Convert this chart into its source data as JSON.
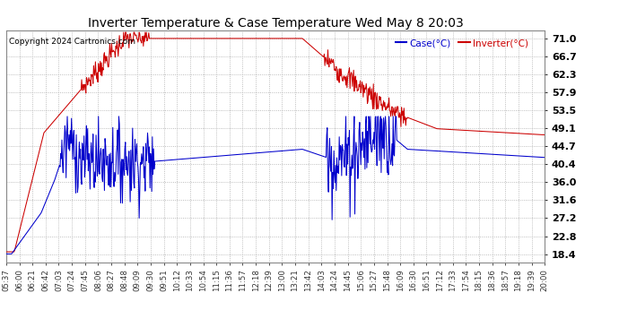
{
  "title": "Inverter Temperature & Case Temperature Wed May 8 20:03",
  "copyright": "Copyright 2024 Cartronics.com",
  "legend_case": "Case(°C)",
  "legend_inverter": "Inverter(°C)",
  "yticks": [
    18.4,
    22.8,
    27.2,
    31.6,
    36.0,
    40.4,
    44.7,
    49.1,
    53.5,
    57.9,
    62.3,
    66.7,
    71.0
  ],
  "ymin": 16.5,
  "ymax": 73.0,
  "background_color": "#ffffff",
  "plot_bg_color": "#ffffff",
  "grid_color": "#aaaaaa",
  "case_color": "#0000cc",
  "inverter_color": "#cc0000",
  "title_color": "#000000",
  "xtick_labels": [
    "05:37",
    "06:00",
    "06:21",
    "06:42",
    "07:03",
    "07:24",
    "07:45",
    "08:06",
    "08:27",
    "08:48",
    "09:09",
    "09:30",
    "09:51",
    "10:12",
    "10:33",
    "10:54",
    "11:15",
    "11:36",
    "11:57",
    "12:18",
    "12:39",
    "13:00",
    "13:21",
    "13:42",
    "14:03",
    "14:24",
    "14:45",
    "15:06",
    "15:27",
    "15:48",
    "16:09",
    "16:30",
    "16:51",
    "17:12",
    "17:33",
    "17:54",
    "18:15",
    "18:36",
    "18:57",
    "19:18",
    "19:39",
    "20:00"
  ],
  "n_points": 900
}
